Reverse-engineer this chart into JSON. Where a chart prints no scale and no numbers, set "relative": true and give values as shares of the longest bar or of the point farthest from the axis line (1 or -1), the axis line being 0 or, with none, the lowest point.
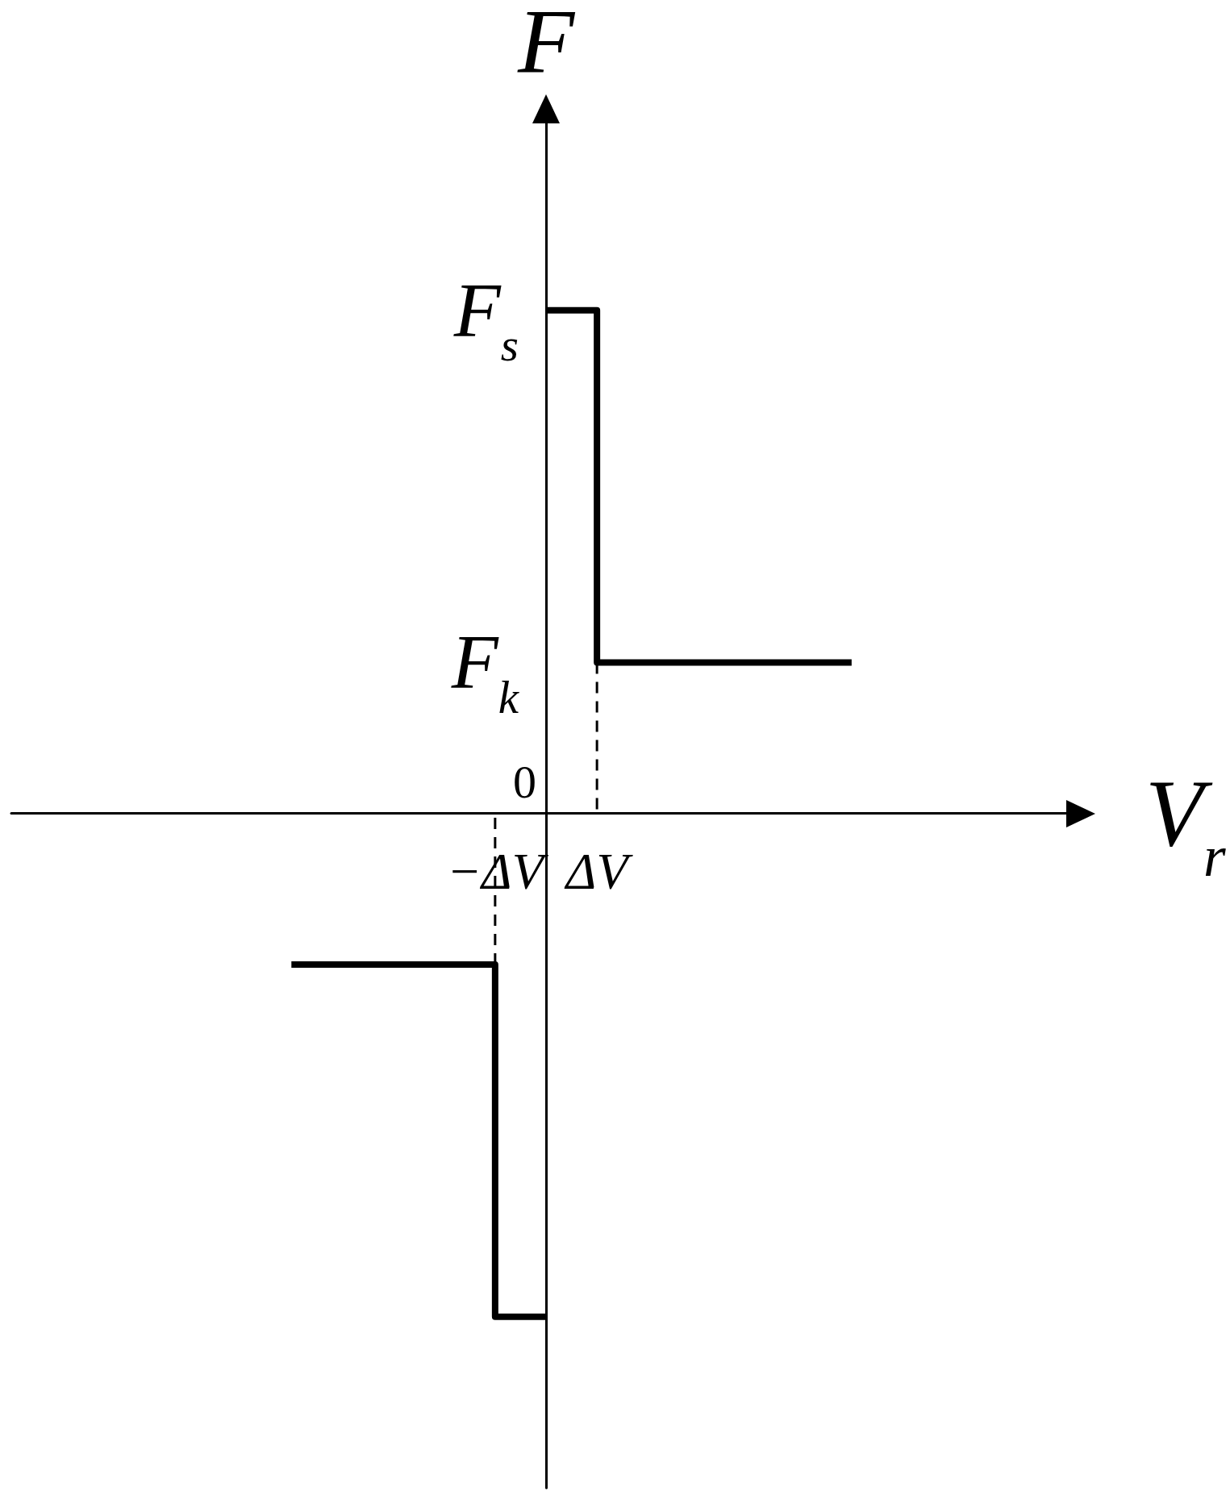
{
  "chart_data": {
    "type": "step",
    "relative": true,
    "xlabel": "V$_{r}$",
    "ylabel": "F",
    "marker": "none",
    "categories": [
      null,
      null,
      null,
      null,
      null,
      null,
      null,
      null,
      null,
      "−ΔV",
      null,
      "ΔV",
      null,
      null,
      null,
      null,
      null,
      null,
      null,
      null,
      null
    ],
    "annotations": [
      "F$_{s}$",
      "F$_{k}$",
      "0"
    ],
    "series": [
      {
        "color": "#000000",
        "line_style": "solid",
        "values": [
          null,
          null,
          null,
          null,
          null,
          null,
          null,
          null,
          null,
          null,
          1,
          0.3,
          0.3,
          0.3,
          0.3,
          0.3,
          0.3,
          null,
          null,
          null,
          null
        ]
      },
      {
        "color": "#000000",
        "line_style": "solid",
        "values": [
          null,
          null,
          null,
          null,
          null,
          -0.3,
          -0.3,
          -0.3,
          -0.3,
          -1,
          -1,
          null,
          null,
          null,
          null,
          null,
          null,
          null,
          null,
          null,
          null
        ]
      },
      {
        "type": "line",
        "color": "#000000",
        "line_style": "dashed",
        "x": [
          "ΔV",
          "ΔV"
        ],
        "values": [
          0.3,
          0
        ]
      },
      {
        "type": "line",
        "color": "#000000",
        "line_style": "dashed",
        "x": [
          "−ΔV",
          "−ΔV"
        ],
        "values": [
          -0.3,
          0
        ]
      }
    ]
  }
}
